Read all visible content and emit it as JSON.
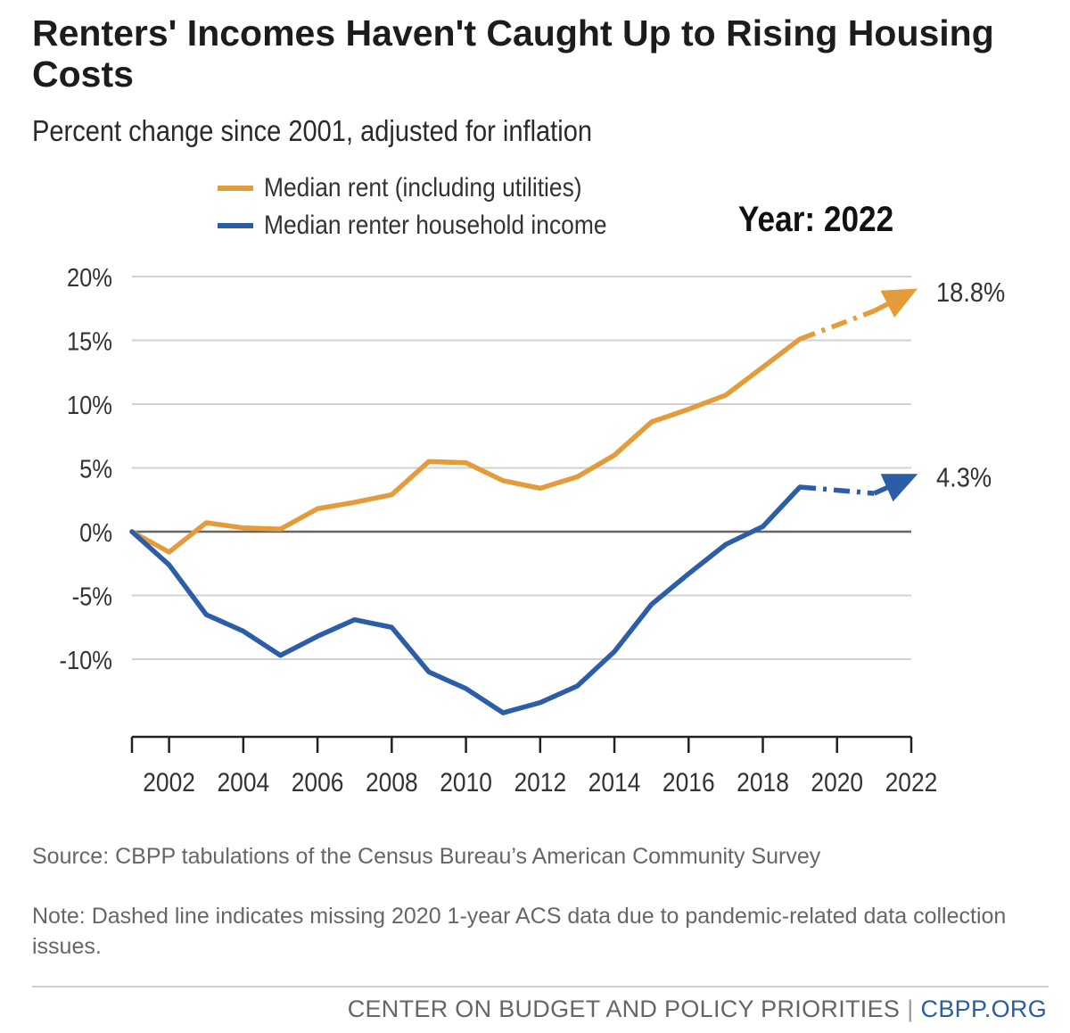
{
  "header": {
    "title": "Renters' Incomes Haven't Caught Up to Rising Housing Costs",
    "subtitle": "Percent change since 2001, adjusted for inflation"
  },
  "legend": {
    "items": [
      {
        "label": "Median rent (including utilities)",
        "color": "#e49b3a"
      },
      {
        "label": "Median renter household income",
        "color": "#2c5ea8"
      }
    ]
  },
  "year_label": "Year: 2022",
  "chart_data": {
    "type": "line",
    "title": "Renters' Incomes Haven't Caught Up to Rising Housing Costs",
    "subtitle": "Percent change since 2001, adjusted for inflation",
    "x": [
      2001,
      2002,
      2003,
      2004,
      2005,
      2006,
      2007,
      2008,
      2009,
      2010,
      2011,
      2012,
      2013,
      2014,
      2015,
      2016,
      2017,
      2018,
      2019,
      2021,
      2022
    ],
    "xlim": [
      2001,
      2022
    ],
    "x_ticks": [
      2002,
      2004,
      2006,
      2008,
      2010,
      2012,
      2014,
      2016,
      2018,
      2020,
      2022
    ],
    "ylim": [
      -15,
      20
    ],
    "y_ticks": [
      {
        "value": 20,
        "label": "20%"
      },
      {
        "value": 15,
        "label": "15%"
      },
      {
        "value": 10,
        "label": "10%"
      },
      {
        "value": 5,
        "label": "5%"
      },
      {
        "value": 0,
        "label": "0%"
      },
      {
        "value": -5,
        "label": "-5%"
      },
      {
        "value": -10,
        "label": "-10%"
      }
    ],
    "grid": true,
    "series": [
      {
        "name": "Median rent (including utilities)",
        "color": "#e49b3a",
        "values": [
          0,
          -1.6,
          0.7,
          0.3,
          0.2,
          1.8,
          2.3,
          2.9,
          5.5,
          5.4,
          4.0,
          3.4,
          4.3,
          6.0,
          8.6,
          9.6,
          10.7,
          12.9,
          15.1,
          17.3,
          18.8
        ],
        "end_label": "18.8%"
      },
      {
        "name": "Median renter household income",
        "color": "#2c5ea8",
        "values": [
          0,
          -2.6,
          -6.5,
          -7.8,
          -9.7,
          -8.2,
          -6.9,
          -7.5,
          -11.0,
          -12.3,
          -14.2,
          -13.4,
          -12.1,
          -9.4,
          -5.7,
          -3.3,
          -1.0,
          0.4,
          3.5,
          3.0,
          4.3
        ],
        "end_label": "4.3%"
      }
    ],
    "dashed_segment": {
      "from": 2019,
      "to": 2021
    },
    "annotation": "Year: 2022"
  },
  "source": "Source: CBPP tabulations of the Census Bureau’s American Community Survey",
  "note": "Note: Dashed line indicates missing 2020 1-year ACS data due to pandemic-related data collection issues.",
  "footer": {
    "org": "CENTER ON BUDGET AND POLICY PRIORITIES",
    "separator": "|",
    "site": "CBPP.ORG"
  }
}
